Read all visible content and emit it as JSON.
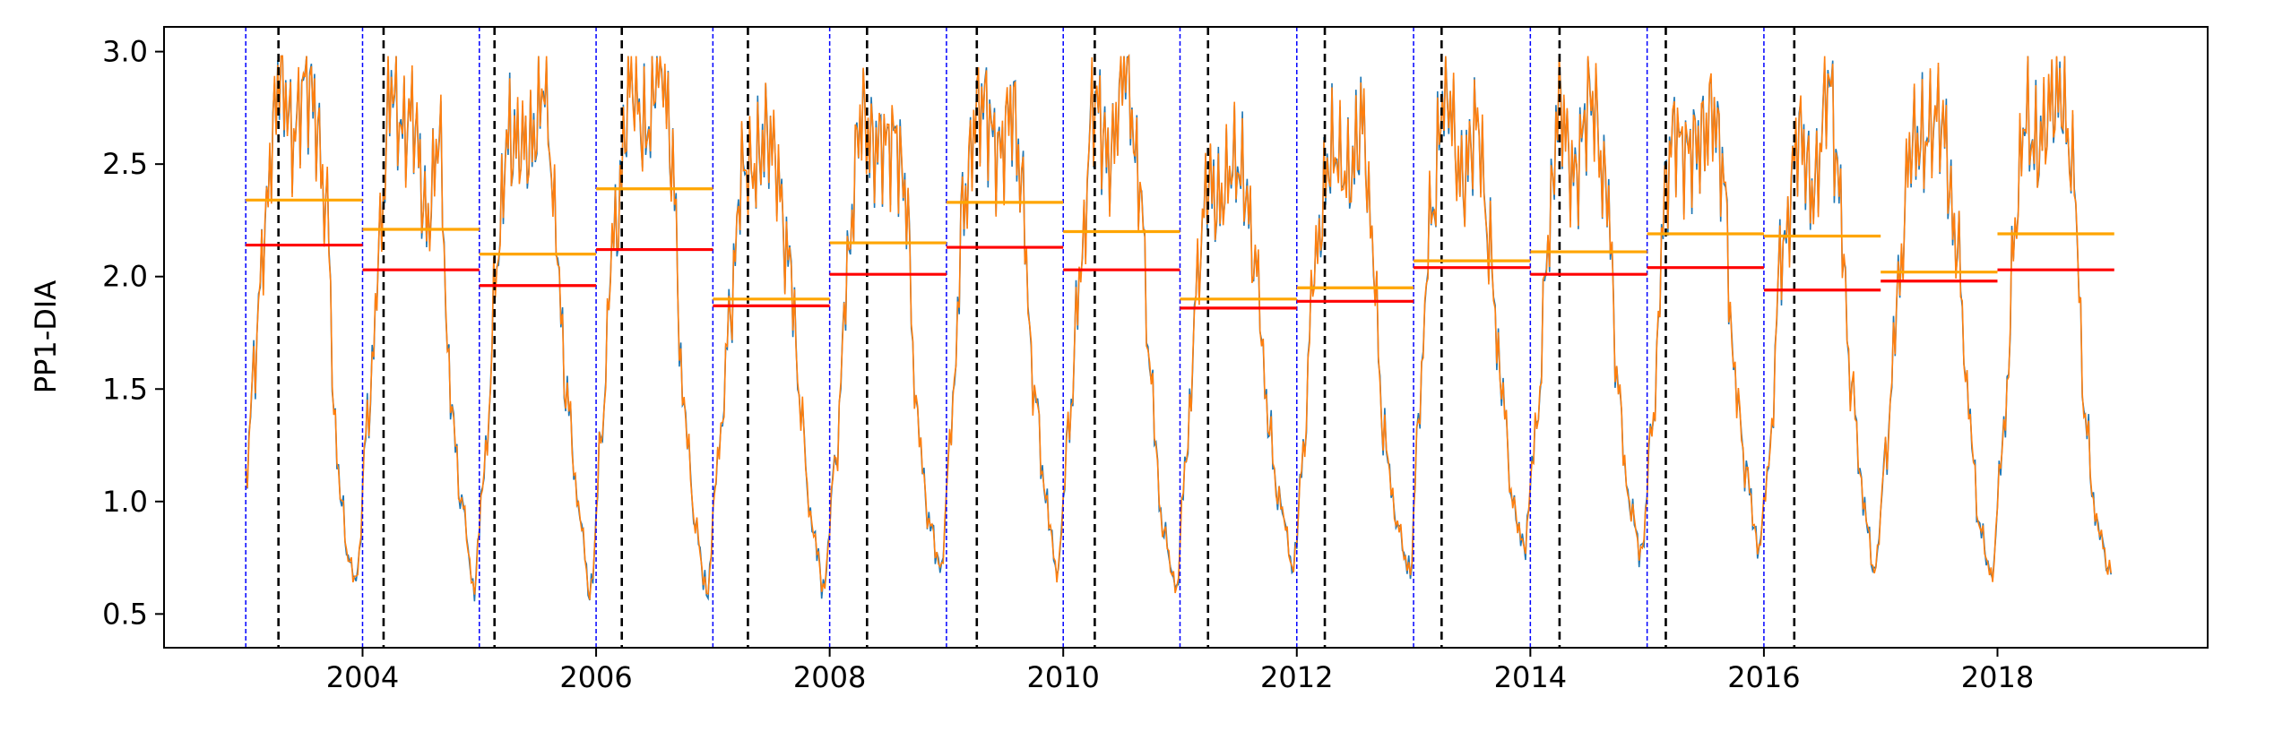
{
  "chart_data": {
    "type": "line",
    "title": "",
    "xlabel": "",
    "ylabel": "PP1-DIA",
    "xlim": [
      2002.3,
      2019.8
    ],
    "ylim": [
      0.35,
      3.11
    ],
    "grid": false,
    "legend": "none",
    "x_ticks": [
      2004,
      2006,
      2008,
      2010,
      2012,
      2014,
      2016,
      2018
    ],
    "x_tick_labels": [
      "2004",
      "2006",
      "2008",
      "2010",
      "2012",
      "2014",
      "2016",
      "2018"
    ],
    "y_ticks": [
      0.5,
      1.0,
      1.5,
      2.0,
      2.5,
      3.0
    ],
    "y_tick_labels": [
      "0.5",
      "1.0",
      "1.5",
      "2.0",
      "2.5",
      "3.0"
    ],
    "colors": {
      "series_blue": "#1f77b4",
      "series_orange": "#ff7f0e",
      "red_mean": "#ff0000",
      "orange_mean": "#ffa500",
      "year_boundary": "#0000ff",
      "event_line": "#000000"
    },
    "year_boundaries": [
      2003,
      2004,
      2005,
      2006,
      2007,
      2008,
      2009,
      2010,
      2011,
      2012,
      2013,
      2014,
      2015,
      2016
    ],
    "event_lines": [
      2003.28,
      2004.18,
      2005.13,
      2006.22,
      2007.3,
      2008.32,
      2009.26,
      2010.27,
      2011.24,
      2012.24,
      2013.24,
      2014.25,
      2015.16,
      2016.26
    ],
    "annual_segments": [
      {
        "x0": 2003,
        "x1": 2004,
        "red": 2.14,
        "orange": 2.34
      },
      {
        "x0": 2004,
        "x1": 2005,
        "red": 2.03,
        "orange": 2.21
      },
      {
        "x0": 2005,
        "x1": 2006,
        "red": 1.96,
        "orange": 2.1
      },
      {
        "x0": 2006,
        "x1": 2007,
        "red": 2.12,
        "orange": 2.39
      },
      {
        "x0": 2007,
        "x1": 2008,
        "red": 1.87,
        "orange": 1.9
      },
      {
        "x0": 2008,
        "x1": 2009,
        "red": 2.01,
        "orange": 2.15
      },
      {
        "x0": 2009,
        "x1": 2010,
        "red": 2.13,
        "orange": 2.33
      },
      {
        "x0": 2010,
        "x1": 2011,
        "red": 2.03,
        "orange": 2.2
      },
      {
        "x0": 2011,
        "x1": 2012,
        "red": 1.86,
        "orange": 1.9
      },
      {
        "x0": 2012,
        "x1": 2013,
        "red": 1.89,
        "orange": 1.95
      },
      {
        "x0": 2013,
        "x1": 2014,
        "red": 2.04,
        "orange": 2.07
      },
      {
        "x0": 2014,
        "x1": 2015,
        "red": 2.01,
        "orange": 2.11
      },
      {
        "x0": 2015,
        "x1": 2016,
        "red": 2.04,
        "orange": 2.19
      },
      {
        "x0": 2016,
        "x1": 2017,
        "red": 1.94,
        "orange": 2.18
      },
      {
        "x0": 2017,
        "x1": 2018,
        "red": 1.98,
        "orange": 2.02
      },
      {
        "x0": 2018,
        "x1": 2019,
        "red": 2.03,
        "orange": 2.19
      }
    ],
    "series_anchor_points": {
      "x": [
        2003.0,
        2003.08,
        2003.15,
        2003.22,
        2003.3,
        2003.4,
        2003.5,
        2003.6,
        2003.7,
        2003.76,
        2003.82,
        2003.88,
        2003.95,
        2004.05,
        2004.15,
        2004.25,
        2004.4,
        2004.55,
        2004.65,
        2004.75,
        2004.85,
        2004.95,
        2005.05,
        2005.15,
        2005.25,
        2005.4,
        2005.55,
        2005.65,
        2005.75,
        2005.85,
        2005.95,
        2006.05,
        2006.15,
        2006.28,
        2006.4,
        2006.55,
        2006.65,
        2006.75,
        2006.85,
        2006.95,
        2007.05,
        2007.15,
        2007.25,
        2007.4,
        2007.55,
        2007.65,
        2007.75,
        2007.85,
        2007.95,
        2008.05,
        2008.15,
        2008.28,
        2008.4,
        2008.55,
        2008.65,
        2008.75,
        2008.85,
        2008.95,
        2009.05,
        2009.15,
        2009.25,
        2009.4,
        2009.55,
        2009.65,
        2009.75,
        2009.85,
        2009.95,
        2010.05,
        2010.15,
        2010.25,
        2010.4,
        2010.55,
        2010.65,
        2010.75,
        2010.85,
        2010.97,
        2011.05,
        2011.15,
        2011.25,
        2011.4,
        2011.55,
        2011.65,
        2011.75,
        2011.85,
        2011.97,
        2012.05,
        2012.15,
        2012.28,
        2012.4,
        2012.55,
        2012.65,
        2012.75,
        2012.85,
        2012.97,
        2013.05,
        2013.15,
        2013.25,
        2013.4,
        2013.55,
        2013.65,
        2013.75,
        2013.85,
        2013.95,
        2014.05,
        2014.15,
        2014.25,
        2014.4,
        2014.55,
        2014.65,
        2014.75,
        2014.85,
        2014.95,
        2015.05,
        2015.15,
        2015.25,
        2015.4,
        2015.55,
        2015.65,
        2015.75,
        2015.85,
        2015.95,
        2016.05,
        2016.15,
        2016.28,
        2016.4,
        2016.55,
        2016.65,
        2016.75,
        2016.85,
        2016.95,
        2017.05,
        2017.15,
        2017.25,
        2017.4,
        2017.55,
        2017.65,
        2017.75,
        2017.85,
        2017.95,
        2018.05,
        2018.15,
        2018.25,
        2018.4,
        2018.55,
        2018.65,
        2018.75,
        2018.85,
        2018.95
      ],
      "y": [
        1.1,
        1.6,
        2.2,
        2.6,
        2.85,
        2.7,
        2.8,
        2.75,
        2.3,
        1.3,
        1.0,
        0.75,
        0.65,
        1.4,
        2.2,
        2.8,
        2.7,
        2.3,
        2.6,
        1.5,
        1.0,
        0.6,
        1.2,
        2.0,
        2.7,
        2.5,
        2.9,
        2.2,
        1.5,
        0.95,
        0.6,
        1.3,
        2.2,
        2.8,
        2.7,
        2.9,
        2.6,
        1.4,
        0.9,
        0.6,
        1.2,
        1.9,
        2.4,
        2.6,
        2.5,
        2.1,
        1.4,
        0.9,
        0.6,
        1.2,
        2.0,
        2.8,
        2.5,
        2.7,
        2.3,
        1.4,
        0.9,
        0.7,
        1.4,
        2.3,
        2.8,
        2.6,
        2.7,
        2.4,
        1.5,
        1.0,
        0.7,
        1.3,
        2.1,
        2.7,
        2.6,
        2.9,
        2.5,
        1.5,
        0.9,
        0.6,
        1.2,
        2.0,
        2.4,
        2.4,
        2.5,
        2.0,
        1.4,
        1.0,
        0.7,
        1.2,
        2.0,
        2.6,
        2.4,
        2.7,
        2.1,
        1.3,
        0.9,
        0.7,
        1.4,
        2.3,
        2.8,
        2.5,
        2.6,
        2.2,
        1.5,
        1.0,
        0.8,
        1.3,
        2.2,
        2.7,
        2.5,
        2.8,
        2.4,
        1.5,
        1.0,
        0.75,
        1.4,
        2.3,
        2.7,
        2.5,
        2.8,
        2.4,
        1.6,
        1.1,
        0.8,
        1.2,
        2.1,
        2.6,
        2.4,
        2.8,
        2.4,
        1.5,
        1.0,
        0.7,
        1.2,
        2.0,
        2.5,
        2.7,
        2.6,
        2.2,
        1.4,
        0.9,
        0.65,
        1.3,
        2.2,
        2.7,
        2.6,
        2.9,
        2.4,
        1.4,
        0.9,
        0.7
      ]
    }
  }
}
